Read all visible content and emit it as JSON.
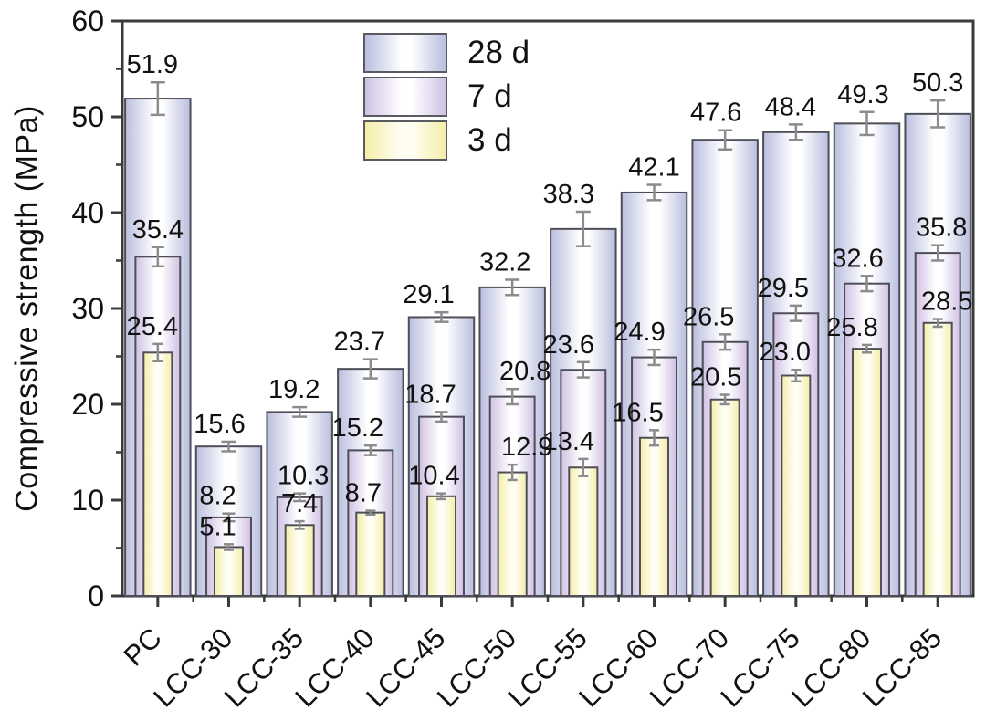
{
  "figure_title": "",
  "y_axis": {
    "title": "Compressive strength (MPa)"
  },
  "legend": {
    "items": [
      {
        "label": "28 d"
      },
      {
        "label": "7 d"
      },
      {
        "label": "3 d"
      }
    ]
  },
  "chart_data": {
    "type": "bar",
    "variant": "nested-overlay-bars-with-error-bars",
    "title": "",
    "xlabel": "",
    "ylabel": "Compressive strength (MPa)",
    "ylim": [
      0,
      60
    ],
    "ytick_major_step": 10,
    "ytick_minor_step": 5,
    "ytick_labels": [
      "0",
      "10",
      "20",
      "30",
      "40",
      "50",
      "60"
    ],
    "grid": false,
    "legend_position": "upper-left-inside-plot",
    "categories": [
      "PC",
      "LCC-30",
      "LCC-35",
      "LCC-40",
      "LCC-45",
      "LCC-50",
      "LCC-55",
      "LCC-60",
      "LCC-70",
      "LCC-75",
      "LCC-80",
      "LCC-85"
    ],
    "series": [
      {
        "name": "28 d",
        "edge_color": "#b9bede",
        "center_color": "#ffffff",
        "bar_width_frac": 0.92,
        "values": [
          51.9,
          15.6,
          19.2,
          23.7,
          29.1,
          32.2,
          38.3,
          42.1,
          47.6,
          48.4,
          49.3,
          50.3
        ],
        "errors": [
          1.7,
          0.5,
          0.5,
          1.0,
          0.5,
          0.8,
          1.8,
          0.8,
          1.0,
          0.8,
          1.2,
          1.4
        ],
        "label_dx": [
          -6,
          -10,
          -6,
          -12,
          -14,
          -8,
          -16,
          0,
          -10,
          -6,
          -4,
          0
        ]
      },
      {
        "name": "7 d",
        "edge_color": "#d0c1e4",
        "center_color": "#ffffff",
        "bar_width_frac": 0.63,
        "values": [
          35.4,
          8.2,
          10.3,
          15.2,
          18.7,
          20.8,
          23.6,
          24.9,
          26.5,
          29.5,
          32.6,
          35.8
        ],
        "errors": [
          1.0,
          0.4,
          0.4,
          0.5,
          0.5,
          0.8,
          0.8,
          0.8,
          0.8,
          0.8,
          0.8,
          0.8
        ],
        "label_dx": [
          0,
          -12,
          4,
          -14,
          -12,
          14,
          -16,
          -16,
          -18,
          -14,
          -10,
          4
        ]
      },
      {
        "name": "3 d",
        "edge_color": "#f4eda8",
        "center_color": "#fffef4",
        "bar_width_frac": 0.4,
        "values": [
          25.4,
          5.1,
          7.4,
          8.7,
          10.4,
          12.9,
          13.4,
          16.5,
          20.5,
          23.0,
          25.8,
          28.5
        ],
        "errors": [
          0.9,
          0.3,
          0.4,
          0.2,
          0.3,
          0.8,
          0.9,
          0.8,
          0.5,
          0.6,
          0.4,
          0.4
        ],
        "label_dx": [
          -6,
          -12,
          0,
          -8,
          -8,
          16,
          -16,
          -18,
          -10,
          -12,
          -16,
          10
        ]
      }
    ],
    "colors": {
      "axis": "#3a3a3a",
      "bar_stroke": "#4e4e58",
      "error_bar": "#8c8c8c",
      "text": "#111111"
    }
  }
}
